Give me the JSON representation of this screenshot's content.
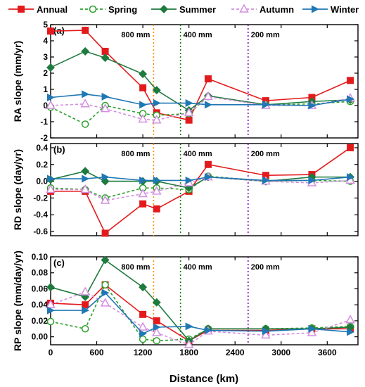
{
  "legend": {
    "placement": "top",
    "items": [
      {
        "name": "Annual",
        "color": "#e31a1c",
        "marker": "square",
        "dash": "solid"
      },
      {
        "name": "Spring",
        "color": "#2ca02c",
        "marker": "circle-open",
        "dash": "dashed"
      },
      {
        "name": "Summer",
        "color": "#1f7a3e",
        "marker": "diamond",
        "dash": "solid"
      },
      {
        "name": "Autumn",
        "color": "#d48ee0",
        "marker": "triangle-open",
        "dash": "dashed"
      },
      {
        "name": "Winter",
        "color": "#1f77b4",
        "marker": "triangle-right",
        "dash": "solid"
      }
    ]
  },
  "xlabel": "Distance (km)",
  "chart_data": [
    {
      "panel": "(a)",
      "type": "line",
      "ylabel": "RA slope (mm/yr)",
      "xlim": [
        0,
        4000
      ],
      "ylim": [
        -2,
        5
      ],
      "xticks": [
        "0",
        "600",
        "1200",
        "1800",
        "2400",
        "3000",
        "3600"
      ],
      "yticks": [
        "-2",
        "-1",
        "0",
        "1",
        "2",
        "3",
        "4",
        "5"
      ],
      "vlines": [
        {
          "x": 1340,
          "label": "800 mm",
          "color": "#ff8c00"
        },
        {
          "x": 1690,
          "label": "400 mm",
          "color": "#1a7a1a"
        },
        {
          "x": 2570,
          "label": "200 mm",
          "color": "#7b00b0"
        }
      ],
      "x": [
        0,
        450,
        710,
        1200,
        1380,
        1800,
        2050,
        2800,
        3400,
        3900
      ],
      "series": [
        {
          "name": "Annual",
          "values": [
            4.6,
            4.65,
            3.35,
            1.1,
            -0.45,
            -0.9,
            1.65,
            0.3,
            0.5,
            1.55
          ]
        },
        {
          "name": "Spring",
          "values": [
            -0.1,
            -1.15,
            0.0,
            -0.5,
            -0.6,
            -0.5,
            0.55,
            0.05,
            0.1,
            0.25
          ]
        },
        {
          "name": "Summer",
          "values": [
            2.35,
            3.35,
            2.95,
            1.95,
            0.95,
            -0.3,
            0.6,
            0.05,
            0.25,
            0.35
          ]
        },
        {
          "name": "Autumn",
          "values": [
            0.0,
            0.1,
            -0.2,
            -0.85,
            -0.9,
            -0.45,
            0.55,
            0.0,
            0.0,
            0.45
          ]
        },
        {
          "name": "Winter",
          "values": [
            0.5,
            0.7,
            0.55,
            0.05,
            0.15,
            0.15,
            0.05,
            0.05,
            0.0,
            0.4
          ]
        }
      ]
    },
    {
      "panel": "(b)",
      "type": "line",
      "ylabel": "RD slope (day/yr)",
      "xlim": [
        0,
        4000
      ],
      "ylim": [
        -0.65,
        0.45
      ],
      "xticks": [
        "0",
        "600",
        "1200",
        "1800",
        "2400",
        "3000",
        "3600"
      ],
      "yticks": [
        "-0.6",
        "-0.4",
        "-0.2",
        "0.0",
        "0.2",
        "0.4"
      ],
      "vlines": [
        {
          "x": 1340,
          "label": "800 mm",
          "color": "#ff8c00"
        },
        {
          "x": 1690,
          "label": "400 mm",
          "color": "#1a7a1a"
        },
        {
          "x": 2570,
          "label": "200 mm",
          "color": "#7b00b0"
        }
      ],
      "x": [
        0,
        450,
        710,
        1200,
        1380,
        1800,
        2050,
        2800,
        3400,
        3900
      ],
      "series": [
        {
          "name": "Annual",
          "values": [
            -0.12,
            -0.12,
            -0.62,
            -0.27,
            -0.33,
            -0.12,
            0.2,
            0.07,
            0.08,
            0.4
          ]
        },
        {
          "name": "Spring",
          "values": [
            -0.08,
            -0.1,
            -0.2,
            -0.08,
            -0.08,
            -0.1,
            0.06,
            0.0,
            0.01,
            0.0
          ]
        },
        {
          "name": "Summer",
          "values": [
            0.02,
            0.12,
            0.0,
            0.0,
            0.0,
            -0.08,
            0.05,
            0.0,
            0.05,
            0.05
          ]
        },
        {
          "name": "Autumn",
          "values": [
            -0.1,
            -0.1,
            -0.23,
            -0.15,
            -0.12,
            -0.02,
            0.05,
            0.0,
            -0.02,
            0.01
          ]
        },
        {
          "name": "Winter",
          "values": [
            0.03,
            0.03,
            0.05,
            0.01,
            0.01,
            0.01,
            0.05,
            0.01,
            0.01,
            0.05
          ]
        }
      ]
    },
    {
      "panel": "(c)",
      "type": "line",
      "ylabel": "RP slope (mm/day/yr)",
      "xlim": [
        0,
        4000
      ],
      "ylim": [
        -0.01,
        0.1
      ],
      "xticks": [
        "0",
        "600",
        "1200",
        "1800",
        "2400",
        "3000",
        "3600"
      ],
      "yticks": [
        "0.00",
        "0.02",
        "0.04",
        "0.06",
        "0.08",
        "0.10"
      ],
      "vlines": [
        {
          "x": 1340,
          "label": "800 mm",
          "color": "#ff8c00"
        },
        {
          "x": 1690,
          "label": "400 mm",
          "color": "#1a7a1a"
        },
        {
          "x": 2570,
          "label": "200 mm",
          "color": "#7b00b0"
        }
      ],
      "x": [
        0,
        450,
        710,
        1200,
        1380,
        1800,
        2050,
        2800,
        3400,
        3900
      ],
      "series": [
        {
          "name": "Annual",
          "values": [
            0.042,
            0.04,
            0.065,
            0.028,
            0.02,
            -0.005,
            0.008,
            0.008,
            0.01,
            0.01
          ]
        },
        {
          "name": "Spring",
          "values": [
            0.019,
            0.01,
            0.065,
            -0.003,
            -0.005,
            -0.003,
            0.01,
            0.01,
            0.011,
            0.013
          ]
        },
        {
          "name": "Summer",
          "values": [
            0.062,
            0.05,
            0.096,
            0.062,
            0.043,
            -0.005,
            0.01,
            0.01,
            0.01,
            0.012
          ]
        },
        {
          "name": "Autumn",
          "values": [
            0.04,
            0.056,
            0.042,
            0.012,
            0.005,
            -0.01,
            0.007,
            0.002,
            0.005,
            0.021
          ]
        },
        {
          "name": "Winter",
          "values": [
            0.033,
            0.033,
            0.055,
            0.004,
            0.012,
            0.013,
            0.008,
            0.007,
            0.01,
            0.006
          ]
        }
      ]
    }
  ]
}
